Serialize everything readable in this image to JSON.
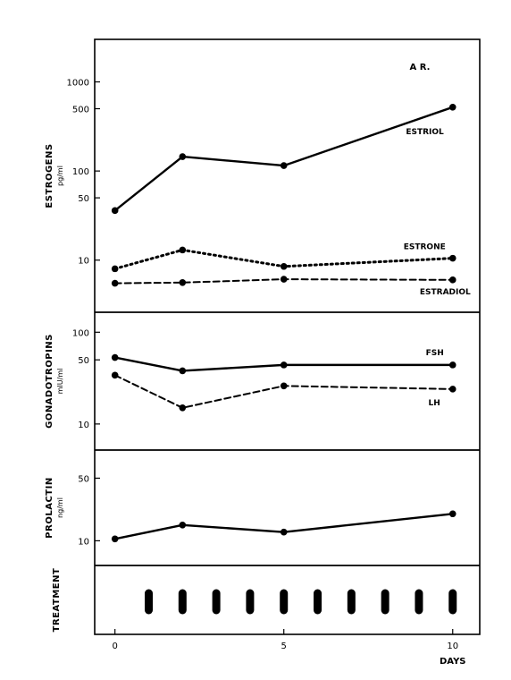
{
  "chart_data": [
    {
      "type": "line",
      "panel": "estrogens",
      "ylabel": "ESTROGENS",
      "yunit": "pg/ml",
      "yscale": "log",
      "ylim": [
        2.6,
        3000
      ],
      "yticks": [
        10,
        50,
        100,
        500,
        1000
      ],
      "annotation": "A R.",
      "series": [
        {
          "name": "ESTRIOL",
          "style": "solid",
          "marker": true,
          "points": [
            [
              0,
              36
            ],
            [
              2,
              145
            ],
            [
              5,
              115
            ],
            [
              10,
              520
            ]
          ]
        },
        {
          "name": "ESTRONE",
          "style": "dotted",
          "marker": true,
          "points": [
            [
              0,
              8
            ],
            [
              2,
              13
            ],
            [
              5,
              8.5
            ],
            [
              10,
              10.5
            ]
          ]
        },
        {
          "name": "ESTRADIOL",
          "style": "dashed",
          "marker": true,
          "points": [
            [
              0,
              5.5
            ],
            [
              2,
              5.6
            ],
            [
              5,
              6.1
            ],
            [
              10,
              6
            ]
          ]
        }
      ]
    },
    {
      "type": "line",
      "panel": "gonadotropins",
      "ylabel": "GONADOTROPINS",
      "yunit": "mIU/ml",
      "yscale": "log",
      "ylim": [
        5.2,
        165
      ],
      "yticks": [
        10,
        50,
        100
      ],
      "series": [
        {
          "name": "FSH",
          "style": "solid",
          "marker": true,
          "points": [
            [
              0,
              53
            ],
            [
              2,
              38
            ],
            [
              5,
              44
            ],
            [
              10,
              44
            ]
          ]
        },
        {
          "name": "LH",
          "style": "dashed",
          "marker": true,
          "points": [
            [
              0,
              34
            ],
            [
              2,
              15
            ],
            [
              5,
              26
            ],
            [
              10,
              24
            ]
          ]
        }
      ]
    },
    {
      "type": "line",
      "panel": "prolactin",
      "ylabel": "PROLACTIN",
      "yunit": "ng/ml",
      "yscale": "log",
      "ylim": [
        5.3,
        103
      ],
      "yticks": [
        10,
        50
      ],
      "series": [
        {
          "name": "",
          "style": "solid",
          "marker": true,
          "points": [
            [
              0,
              10.5
            ],
            [
              2,
              15
            ],
            [
              5,
              12.5
            ],
            [
              10,
              20
            ]
          ]
        }
      ]
    },
    {
      "type": "scatter",
      "panel": "treatment",
      "ylabel": "TREATMENT",
      "marker": "bar",
      "x": [
        1,
        2,
        3,
        4,
        5,
        6,
        7,
        8,
        9,
        10
      ]
    }
  ],
  "xaxis": {
    "label": "DAYS",
    "ticks": [
      0,
      5,
      10
    ],
    "xlim": [
      -0.6,
      10.8
    ]
  }
}
